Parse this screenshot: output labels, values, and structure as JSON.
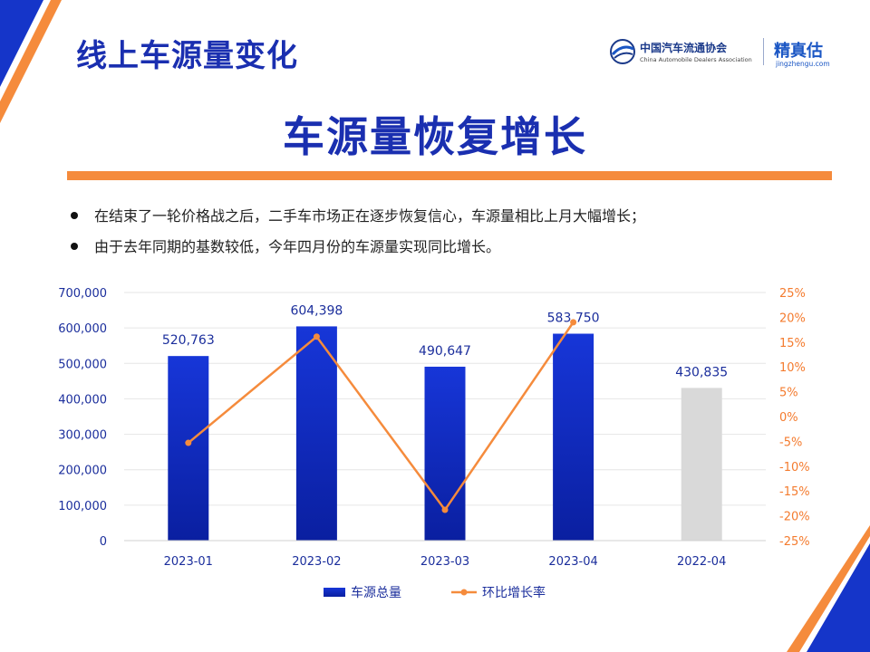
{
  "header": {
    "title": "线上车源量变化",
    "org_name_cn": "中国汽车流通协会",
    "org_name_en": "China Automobile Dealers Association",
    "brand_name": "精真估",
    "brand_url": "jingzhengu.com"
  },
  "headline": "车源量恢复增长",
  "bullets": [
    "在结束了一轮价格战之后，二手车市场正在逐步恢复信心，车源量相比上月大幅增长；",
    "由于去年同期的基数较低，今年四月份的车源量实现同比增长。"
  ],
  "colors": {
    "brand_blue": "#1a2fb0",
    "bar_top": "#1736d8",
    "bar_bottom": "#0a1fa0",
    "bar_gray": "#d9d9d9",
    "line_orange": "#f58b3c",
    "accent_orange": "#f58b3c"
  },
  "chart_data": {
    "type": "bar",
    "categories": [
      "2023-01",
      "2023-02",
      "2023-03",
      "2023-04",
      "2022-04"
    ],
    "y_left": {
      "min": 0,
      "max": 700000,
      "ticks": [
        0,
        100000,
        200000,
        300000,
        400000,
        500000,
        600000,
        700000
      ],
      "tick_labels": [
        "0",
        "100,000",
        "200,000",
        "300,000",
        "400,000",
        "500,000",
        "600,000",
        "700,000"
      ]
    },
    "y_right": {
      "min": -25,
      "max": 25,
      "unit": "%",
      "ticks": [
        -25,
        -20,
        -15,
        -10,
        -5,
        0,
        5,
        10,
        15,
        20,
        25
      ],
      "tick_labels": [
        "-25%",
        "-20%",
        "-15%",
        "-10%",
        "-5%",
        "0%",
        "5%",
        "10%",
        "15%",
        "20%",
        "25%"
      ]
    },
    "series": [
      {
        "name": "车源总量",
        "type": "bar",
        "axis": "left",
        "values": [
          520763,
          604398,
          490647,
          583750,
          430835
        ],
        "labels": [
          "520,763",
          "604,398",
          "490,647",
          "583,750",
          "430,835"
        ]
      },
      {
        "name": "环比增长率",
        "type": "line",
        "axis": "right",
        "values": [
          -5.3,
          16.1,
          -18.8,
          19.0,
          null
        ]
      }
    ],
    "legend": "bottom",
    "grid": true
  }
}
